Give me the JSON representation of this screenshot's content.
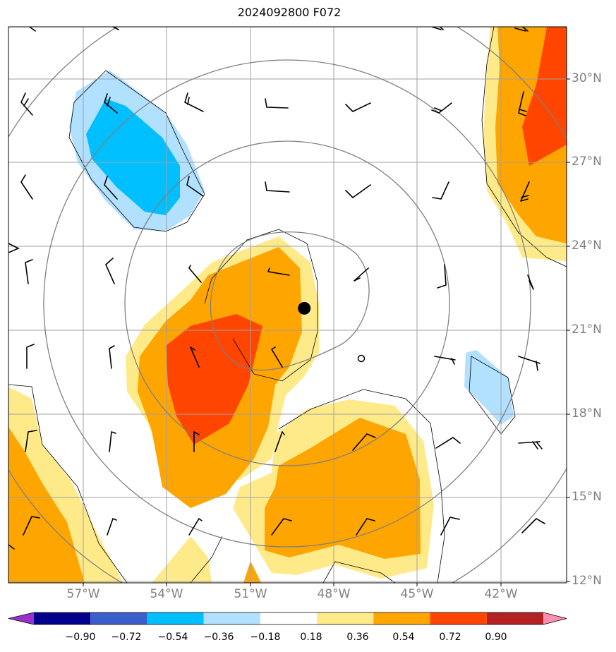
{
  "chart_data": {
    "type": "heatmap",
    "title": "2024092800 F072",
    "lon_range": [
      -60,
      -40
    ],
    "lat_range": [
      12,
      32
    ],
    "lat_ticks": [
      "30°N",
      "27°N",
      "24°N",
      "21°N",
      "18°N",
      "15°N",
      "12°N"
    ],
    "lon_ticks": [
      "57°W",
      "54°W",
      "51°W",
      "48°W",
      "45°W",
      "42°W"
    ],
    "grid": true,
    "center_marker": {
      "lon": -49.4,
      "lat": 21.85
    },
    "range_rings": "concentric gray circles around the center marker",
    "colorbar": {
      "levels": [
        "−0.90",
        "−0.72",
        "−0.54",
        "−0.36",
        "−0.18",
        "0.18",
        "0.36",
        "0.54",
        "0.72",
        "0.90"
      ],
      "colors": [
        "#9932cc",
        "#00008b",
        "#3a5fcd",
        "#00bfff",
        "#b2e0ff",
        "#ffffff",
        "#ffea8a",
        "#ffa500",
        "#ff4500",
        "#b22222",
        "#ff8fb1"
      ],
      "extend": "both"
    },
    "filled_regions": [
      {
        "name": "positive-center",
        "levels": [
          "0.18",
          "0.36",
          "0.54"
        ],
        "center": [
          -51.5,
          20.5
        ]
      },
      {
        "name": "positive-southeast",
        "levels": [
          "0.18",
          "0.36"
        ],
        "center": [
          -46.5,
          15.5
        ]
      },
      {
        "name": "positive-southwest",
        "levels": [
          "0.18",
          "0.36"
        ],
        "center": [
          -59,
          14.5
        ]
      },
      {
        "name": "positive-northeast",
        "levels": [
          "0.18",
          "0.36",
          "0.54"
        ],
        "center": [
          -41,
          28
        ]
      },
      {
        "name": "negative-northwest",
        "levels": [
          "−0.18",
          "−0.36"
        ],
        "center": [
          -55.5,
          27.5
        ]
      },
      {
        "name": "negative-east",
        "levels": [
          "−0.18"
        ],
        "center": [
          -43.2,
          19.3
        ]
      }
    ]
  }
}
